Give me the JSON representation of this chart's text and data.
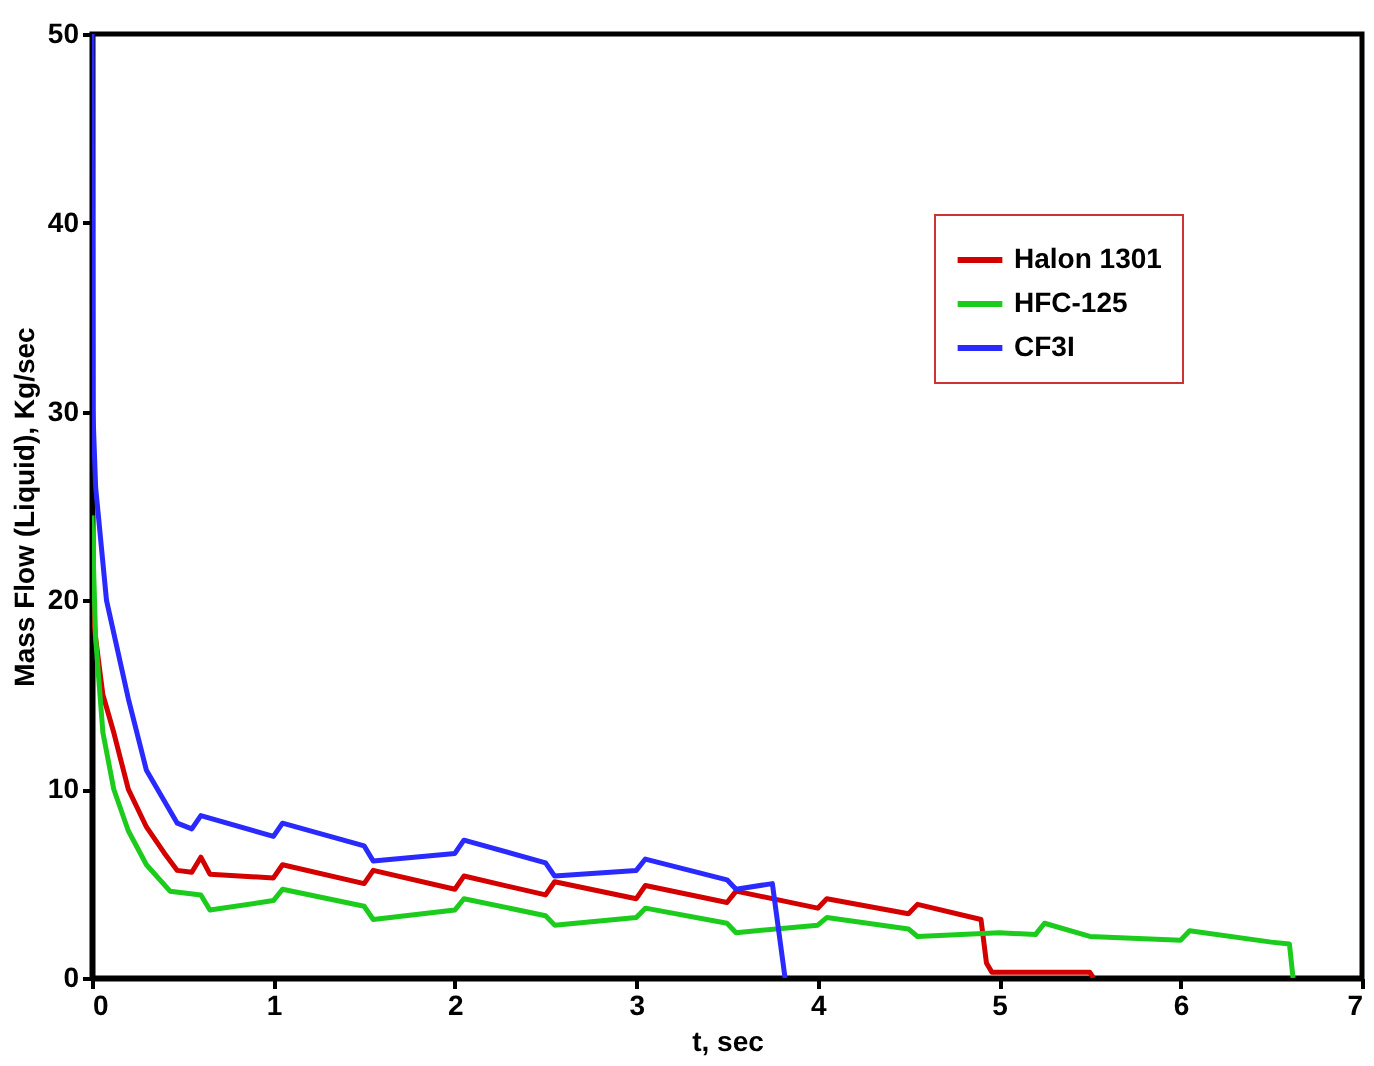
{
  "chart_data": {
    "type": "line",
    "xlabel": "t, sec",
    "ylabel": "Mass Flow (Liquid), Kg/sec",
    "xlim": [
      0,
      7
    ],
    "ylim": [
      0,
      50
    ],
    "xticks": [
      0,
      1,
      2,
      3,
      4,
      5,
      6,
      7
    ],
    "yticks": [
      0,
      10,
      20,
      30,
      40,
      50
    ],
    "grid": false,
    "legend": "top right",
    "marker": "none",
    "line_style": "solid",
    "series": [
      {
        "name": "Halon 1301",
        "color": "#d40000",
        "x": [
          0,
          0.02,
          0.06,
          0.12,
          0.2,
          0.3,
          0.4,
          0.47,
          0.55,
          0.6,
          0.65,
          1.0,
          1.05,
          1.5,
          1.55,
          2.0,
          2.05,
          2.5,
          2.55,
          3.0,
          3.05,
          3.5,
          3.55,
          4.0,
          4.05,
          4.5,
          4.55,
          4.9,
          4.93,
          4.96,
          5.5,
          5.52
        ],
        "values": [
          20,
          18,
          15,
          13,
          10,
          8,
          6.6,
          5.7,
          5.6,
          6.4,
          5.5,
          5.3,
          6.0,
          5.0,
          5.7,
          4.7,
          5.4,
          4.4,
          5.1,
          4.2,
          4.9,
          4.0,
          4.6,
          3.7,
          4.2,
          3.4,
          3.9,
          3.1,
          0.8,
          0.3,
          0.3,
          0
        ]
      },
      {
        "name": "HFC-125",
        "color": "#1ccc1c",
        "x": [
          0,
          0.02,
          0.06,
          0.12,
          0.2,
          0.3,
          0.43,
          0.6,
          0.65,
          1.0,
          1.05,
          1.5,
          1.55,
          2.0,
          2.05,
          2.5,
          2.55,
          3.0,
          3.05,
          3.5,
          3.55,
          4.0,
          4.05,
          4.5,
          4.55,
          5.0,
          5.2,
          5.25,
          5.5,
          6.0,
          6.05,
          6.5,
          6.6,
          6.62
        ],
        "values": [
          24.5,
          18,
          13,
          10,
          7.8,
          6,
          4.6,
          4.4,
          3.6,
          4.1,
          4.7,
          3.8,
          3.1,
          3.6,
          4.2,
          3.3,
          2.8,
          3.2,
          3.7,
          2.9,
          2.4,
          2.8,
          3.2,
          2.6,
          2.2,
          2.4,
          2.3,
          2.9,
          2.2,
          2.0,
          2.5,
          1.9,
          1.8,
          0
        ]
      },
      {
        "name": "CF3I",
        "color": "#2a2aff",
        "x": [
          0,
          0.005,
          0.02,
          0.08,
          0.2,
          0.3,
          0.47,
          0.55,
          0.6,
          1.0,
          1.05,
          1.5,
          1.55,
          2.0,
          2.05,
          2.5,
          2.55,
          3.0,
          3.05,
          3.5,
          3.55,
          3.75,
          3.82
        ],
        "values": [
          50,
          30,
          26,
          20,
          14.8,
          11,
          8.2,
          7.9,
          8.6,
          7.5,
          8.2,
          7.0,
          6.2,
          6.6,
          7.3,
          6.1,
          5.4,
          5.7,
          6.3,
          5.2,
          4.7,
          5.0,
          0
        ]
      }
    ]
  }
}
